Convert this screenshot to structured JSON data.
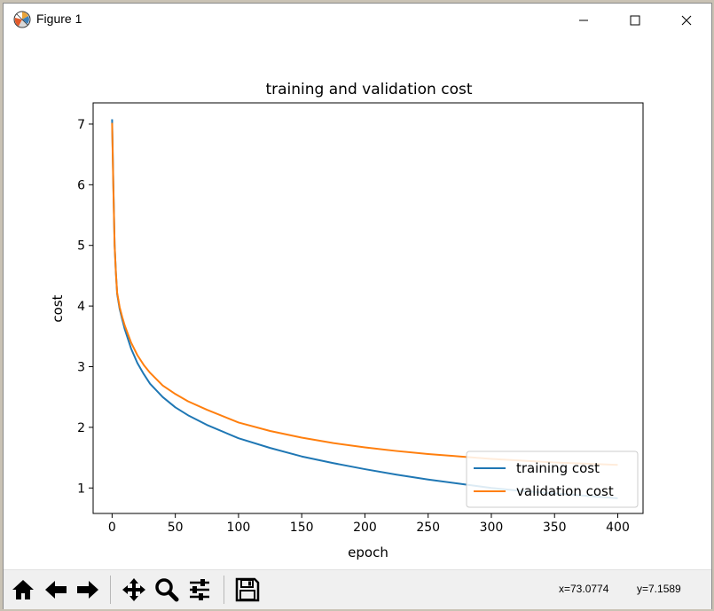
{
  "window": {
    "title": "Figure 1",
    "icon": "matplotlib-icon",
    "controls": [
      "minimize-icon",
      "maximize-icon",
      "close-icon"
    ]
  },
  "toolbar": {
    "buttons": [
      "home-icon",
      "back-arrow-icon",
      "forward-arrow-icon",
      "pan-icon",
      "zoom-icon",
      "configure-subplots-icon",
      "save-icon"
    ],
    "coord_x": "x=73.0774",
    "coord_y": "y=7.1589"
  },
  "chart_data": {
    "type": "line",
    "title": "training and validation cost",
    "xlabel": "epoch",
    "ylabel": "cost",
    "xlim": [
      -15,
      420
    ],
    "ylim": [
      0.58,
      7.35
    ],
    "xticks": [
      0,
      50,
      100,
      150,
      200,
      250,
      300,
      350,
      400
    ],
    "yticks": [
      1,
      2,
      3,
      4,
      5,
      6,
      7
    ],
    "grid": false,
    "legend_position": "lower-right",
    "series": [
      {
        "name": "training cost",
        "color": "#1f77b4",
        "x": [
          0,
          1,
          2,
          3,
          4,
          6,
          8,
          10,
          15,
          20,
          25,
          30,
          40,
          50,
          60,
          75,
          100,
          125,
          150,
          175,
          200,
          225,
          250,
          275,
          300,
          325,
          350,
          375,
          400
        ],
        "y": [
          7.08,
          6.0,
          5.0,
          4.55,
          4.2,
          3.95,
          3.78,
          3.62,
          3.3,
          3.06,
          2.88,
          2.72,
          2.5,
          2.33,
          2.2,
          2.04,
          1.82,
          1.66,
          1.52,
          1.41,
          1.31,
          1.22,
          1.14,
          1.07,
          1.0,
          0.95,
          0.91,
          0.87,
          0.83
        ]
      },
      {
        "name": "validation cost",
        "color": "#ff7f0e",
        "x": [
          0,
          1,
          2,
          3,
          4,
          6,
          8,
          10,
          15,
          20,
          25,
          30,
          40,
          50,
          60,
          75,
          100,
          125,
          150,
          175,
          200,
          225,
          250,
          275,
          300,
          325,
          350,
          375,
          400
        ],
        "y": [
          7.02,
          5.95,
          5.0,
          4.55,
          4.22,
          3.98,
          3.82,
          3.68,
          3.4,
          3.19,
          3.03,
          2.9,
          2.69,
          2.55,
          2.43,
          2.29,
          2.08,
          1.94,
          1.83,
          1.74,
          1.67,
          1.61,
          1.56,
          1.52,
          1.48,
          1.45,
          1.42,
          1.4,
          1.38
        ]
      }
    ]
  }
}
